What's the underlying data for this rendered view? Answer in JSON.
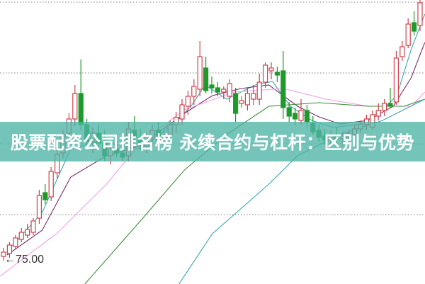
{
  "title": "股票配资公司排名榜 永续合约与杠杆：区别与优势",
  "chart_data": {
    "type": "candlestick",
    "title": "股票配资公司排名榜 永续合约与杠杆：区别与优势",
    "price_marker": {
      "label": "75.00",
      "value": 75.0,
      "bar_index": 1
    },
    "grid": true,
    "gridlines": [
      93.25,
      88.25,
      83.25,
      78.25
    ],
    "ylim": [
      71.35,
      93.4
    ],
    "colors": {
      "up": "#d0414b",
      "down": "#1f9a2a",
      "ma5": "#3aa8a6",
      "ma10": "#7a2d6e",
      "ma20": "#f0a0e6",
      "ma30": "#3f8f3a",
      "ma60": "#3aa6a8",
      "grid": "#999999",
      "banner": "#4eb4a5"
    },
    "candles_ohlc": [
      [
        75.3,
        75.9,
        75.0,
        75.6
      ],
      [
        75.5,
        76.3,
        75.2,
        76.1
      ],
      [
        76.0,
        76.8,
        75.8,
        76.6
      ],
      [
        76.5,
        77.3,
        76.3,
        77.0
      ],
      [
        76.8,
        77.6,
        76.6,
        77.2
      ],
      [
        77.0,
        78.0,
        76.8,
        77.8
      ],
      [
        78.0,
        80.0,
        77.6,
        79.6
      ],
      [
        79.8,
        80.4,
        79.0,
        79.3
      ],
      [
        79.5,
        81.6,
        79.2,
        81.3
      ],
      [
        81.2,
        82.8,
        80.8,
        82.5
      ],
      [
        82.6,
        84.2,
        82.2,
        83.9
      ],
      [
        84.0,
        85.4,
        83.5,
        85.0
      ],
      [
        85.0,
        87.4,
        84.5,
        86.8
      ],
      [
        86.8,
        89.2,
        84.2,
        84.6
      ],
      [
        84.6,
        85.0,
        83.2,
        83.4
      ],
      [
        83.4,
        84.4,
        82.6,
        84.0
      ],
      [
        84.0,
        84.6,
        83.0,
        83.3
      ],
      [
        83.3,
        84.2,
        82.0,
        82.4
      ],
      [
        82.4,
        83.2,
        81.8,
        82.9
      ],
      [
        82.9,
        83.4,
        82.3,
        82.6
      ],
      [
        82.6,
        83.2,
        82.0,
        82.3
      ],
      [
        82.4,
        84.8,
        82.0,
        84.3
      ],
      [
        84.2,
        85.2,
        83.4,
        83.7
      ],
      [
        83.7,
        84.3,
        82.8,
        83.1
      ],
      [
        83.1,
        84.0,
        82.6,
        83.7
      ],
      [
        83.7,
        84.6,
        83.0,
        84.2
      ],
      [
        84.2,
        84.8,
        83.2,
        83.5
      ],
      [
        83.5,
        84.2,
        82.8,
        83.9
      ],
      [
        83.9,
        84.9,
        83.4,
        84.6
      ],
      [
        84.6,
        85.5,
        84.0,
        85.1
      ],
      [
        85.0,
        86.4,
        84.6,
        86.0
      ],
      [
        85.9,
        87.0,
        85.3,
        86.6
      ],
      [
        86.6,
        87.8,
        86.0,
        87.3
      ],
      [
        87.1,
        90.5,
        86.6,
        89.4
      ],
      [
        88.6,
        89.4,
        86.8,
        87.0
      ],
      [
        87.4,
        88.0,
        86.8,
        87.2
      ],
      [
        87.2,
        87.6,
        86.6,
        86.9
      ],
      [
        86.9,
        87.3,
        86.4,
        87.1
      ],
      [
        86.6,
        87.8,
        86.2,
        87.5
      ],
      [
        86.8,
        87.2,
        84.8,
        85.4
      ],
      [
        86.1,
        86.6,
        85.8,
        86.3
      ],
      [
        86.0,
        87.2,
        85.6,
        86.8
      ],
      [
        86.4,
        87.4,
        86.0,
        86.8
      ],
      [
        86.4,
        88.2,
        86.0,
        87.6
      ],
      [
        87.6,
        89.0,
        87.2,
        88.8
      ],
      [
        88.4,
        89.0,
        87.8,
        88.6
      ],
      [
        88.3,
        88.7,
        87.6,
        88.1
      ],
      [
        88.4,
        89.8,
        85.0,
        85.8
      ],
      [
        85.8,
        86.2,
        84.8,
        85.2
      ],
      [
        85.4,
        85.8,
        84.6,
        85.0
      ],
      [
        84.9,
        86.4,
        84.6,
        85.6
      ],
      [
        85.6,
        86.0,
        84.4,
        84.8
      ],
      [
        84.7,
        85.2,
        83.9,
        84.1
      ],
      [
        84.2,
        84.6,
        83.4,
        83.7
      ],
      [
        83.8,
        84.3,
        83.2,
        83.5
      ],
      [
        83.6,
        84.2,
        83.0,
        83.9
      ],
      [
        83.9,
        84.4,
        83.3,
        83.6
      ],
      [
        83.6,
        84.1,
        83.1,
        83.8
      ],
      [
        83.7,
        84.2,
        83.2,
        84.0
      ],
      [
        83.9,
        84.6,
        83.6,
        84.3
      ],
      [
        84.3,
        84.9,
        84.0,
        84.6
      ],
      [
        84.6,
        85.3,
        84.2,
        85.0
      ],
      [
        84.4,
        85.6,
        84.2,
        85.3
      ],
      [
        85.2,
        86.1,
        84.9,
        85.6
      ],
      [
        85.6,
        86.4,
        85.2,
        86.1
      ],
      [
        86.1,
        87.2,
        85.8,
        85.9
      ],
      [
        86.2,
        89.8,
        86.0,
        89.3
      ],
      [
        89.4,
        90.5,
        89.1,
        90.1
      ],
      [
        90.2,
        92.1,
        90.0,
        91.7
      ],
      [
        91.8,
        92.6,
        90.9,
        91.2
      ],
      [
        91.6,
        93.4,
        91.2,
        93.2
      ]
    ],
    "moving_averages": [
      {
        "key": "ma5",
        "points": [
          [
            0.6,
            75.65
          ],
          [
            6.5,
            78.4
          ],
          [
            11.3,
            82.9
          ],
          [
            16.1,
            83.4
          ],
          [
            23.2,
            82.9
          ],
          [
            29.2,
            84.9
          ],
          [
            31.5,
            85.9
          ],
          [
            33.9,
            87.4
          ],
          [
            37.5,
            86.4
          ],
          [
            42.3,
            87.4
          ],
          [
            45.2,
            87.65
          ],
          [
            48.2,
            85.9
          ],
          [
            51.8,
            84.9
          ],
          [
            55.4,
            84.4
          ],
          [
            60.1,
            84.65
          ],
          [
            63.7,
            85.65
          ],
          [
            66.1,
            86.65
          ],
          [
            68.5,
            89.9
          ],
          [
            70.8,
            92.4
          ]
        ]
      },
      {
        "key": "ma10",
        "points": [
          [
            0.6,
            75.4
          ],
          [
            6.5,
            77.15
          ],
          [
            11.3,
            80.9
          ],
          [
            17.3,
            82.4
          ],
          [
            23.2,
            83.15
          ],
          [
            30.4,
            85.4
          ],
          [
            35.1,
            86.65
          ],
          [
            39.9,
            87.15
          ],
          [
            44.6,
            87.4
          ],
          [
            49.4,
            85.9
          ],
          [
            53,
            85.15
          ],
          [
            56.5,
            84.65
          ],
          [
            61.3,
            84.9
          ],
          [
            65.5,
            85.9
          ],
          [
            68.5,
            87.9
          ],
          [
            70.8,
            90.4
          ]
        ]
      },
      {
        "key": "ma20",
        "points": [
          [
            -0.6,
            73.9
          ],
          [
            8.9,
            76.9
          ],
          [
            17.3,
            80.4
          ],
          [
            23.2,
            83.4
          ],
          [
            30.4,
            85.65
          ],
          [
            38.7,
            86.9
          ],
          [
            47,
            87.15
          ],
          [
            54.2,
            86.4
          ],
          [
            61.3,
            85.9
          ],
          [
            68.5,
            85.9
          ],
          [
            70.8,
            86.9
          ]
        ]
      },
      {
        "key": "ma30",
        "points": [
          [
            10.1,
            71.65
          ],
          [
            23.2,
            77.9
          ],
          [
            30.4,
            81.4
          ],
          [
            37.5,
            83.9
          ],
          [
            44.6,
            85.9
          ],
          [
            53,
            86.15
          ],
          [
            61.3,
            85.9
          ],
          [
            67.3,
            85.9
          ],
          [
            70.8,
            86.4
          ]
        ]
      },
      {
        "key": "ma60",
        "points": [
          [
            26.8,
            71.65
          ],
          [
            35.1,
            76.9
          ],
          [
            44.6,
            80.4
          ],
          [
            49.4,
            82.4
          ],
          [
            56.5,
            83.9
          ],
          [
            63.7,
            84.9
          ],
          [
            70.8,
            86.4
          ]
        ]
      }
    ]
  }
}
